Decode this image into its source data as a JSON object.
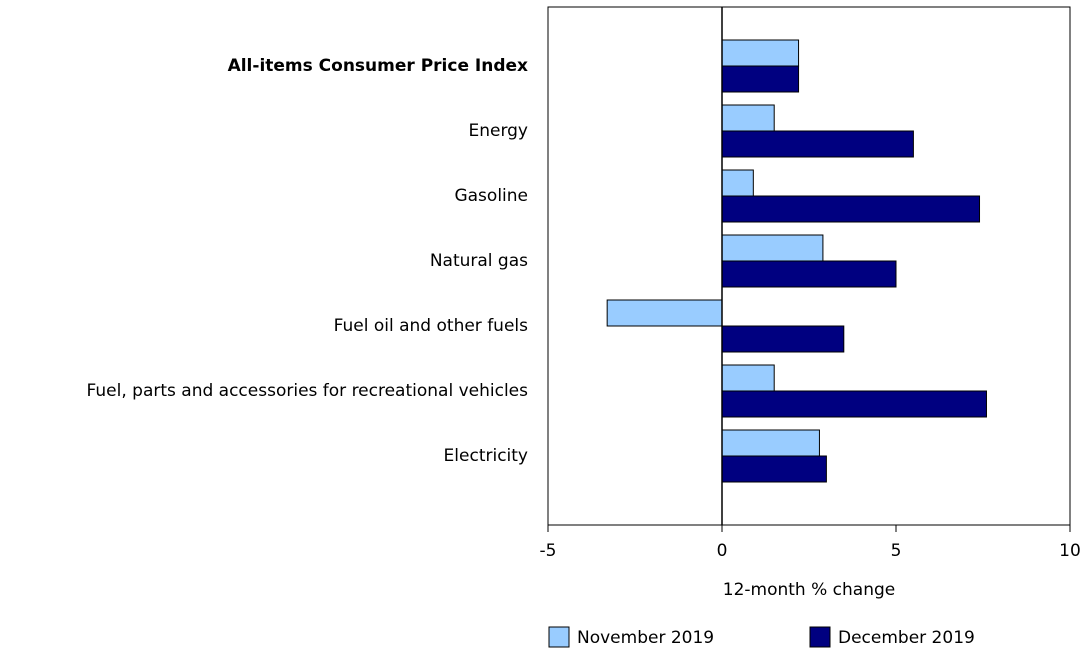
{
  "chart_data": {
    "type": "bar",
    "orientation": "horizontal",
    "categories": [
      "All-items Consumer Price Index",
      "Energy",
      "Gasoline",
      "Natural gas",
      "Fuel oil and other fuels",
      "Fuel, parts and accessories for recreational vehicles",
      "Electricity"
    ],
    "series": [
      {
        "name": "November 2019",
        "color": "#99ccff",
        "values": [
          2.2,
          1.5,
          0.9,
          2.9,
          -3.3,
          1.5,
          2.8
        ]
      },
      {
        "name": "December 2019",
        "color": "#000080",
        "values": [
          2.2,
          5.5,
          7.4,
          5.0,
          3.5,
          7.6,
          3.0
        ]
      }
    ],
    "x_label": "12-month % change",
    "xlim": [
      -5,
      10
    ],
    "xticks": [
      -5,
      0,
      5,
      10
    ],
    "grid": false,
    "legend": "bottom"
  }
}
